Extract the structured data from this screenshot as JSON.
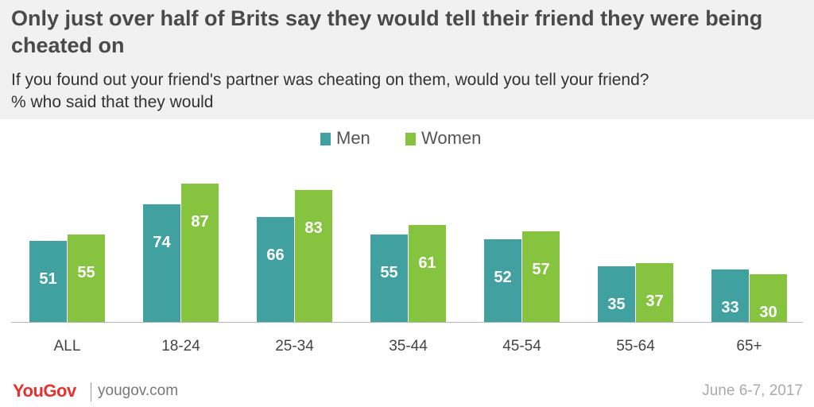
{
  "header": {
    "title": "Only just over half of Brits say they would tell their friend they were being cheated on",
    "question": "If you found out your friend's partner was cheating on them, would you tell your friend?",
    "note": "% who said that they would"
  },
  "footer": {
    "brand": "YouGov",
    "url": "yougov.com",
    "date": "June 6-7, 2017"
  },
  "colors": {
    "men": "#41a0a0",
    "women": "#86c440",
    "header_bg": "#f1f1f1",
    "brand": "#e6312f"
  },
  "chart_data": {
    "type": "bar",
    "categories": [
      "ALL",
      "18-24",
      "25-34",
      "35-44",
      "45-54",
      "55-64",
      "65+"
    ],
    "series": [
      {
        "name": "Men",
        "values": [
          51,
          74,
          66,
          55,
          52,
          35,
          33
        ]
      },
      {
        "name": "Women",
        "values": [
          55,
          87,
          83,
          61,
          57,
          37,
          30
        ]
      }
    ],
    "ylim": [
      0,
      100
    ],
    "grid": false,
    "legend": "top-center",
    "data_labels": true,
    "xlabel": "",
    "ylabel": ""
  }
}
